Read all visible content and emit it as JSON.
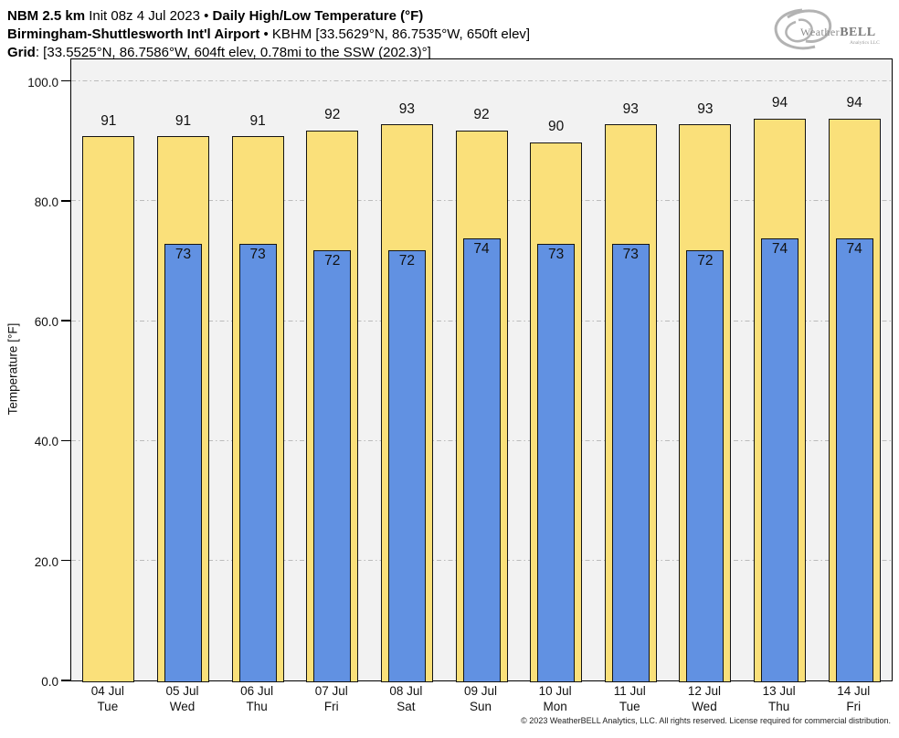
{
  "header": {
    "line1_bold1": "NBM 2.5 km",
    "line1_regular": " Init 08z 4 Jul 2023 • ",
    "line1_bold2": "Daily High/Low Temperature (°F)",
    "line2_bold": "Birmingham-Shuttlesworth Int'l Airport",
    "line2_regular": " • KBHM [33.5629°N, 86.7535°W, 650ft elev]",
    "line3_bold": "Grid",
    "line3_regular": ": [33.5525°N, 86.7586°W, 604ft elev, 0.78mi to the SSW (202.3)°]"
  },
  "logo": {
    "weather": "Weather",
    "bell": "BELL",
    "sub": "Analytics LLC"
  },
  "chart_data": {
    "type": "bar",
    "title": "Daily High/Low Temperature (°F)",
    "ylabel": "Temperature [°F]",
    "ylim": [
      0,
      103.6
    ],
    "yticks": [
      0,
      20,
      40,
      60,
      80,
      100
    ],
    "ytick_labels": [
      "0.0",
      "20.0",
      "40.0",
      "60.0",
      "80.0",
      "100.0"
    ],
    "grid": "horizontal dash-dot at each ytick",
    "legend_position": "none",
    "categories": [
      {
        "date": "04 Jul",
        "day": "Tue"
      },
      {
        "date": "05 Jul",
        "day": "Wed"
      },
      {
        "date": "06 Jul",
        "day": "Thu"
      },
      {
        "date": "07 Jul",
        "day": "Fri"
      },
      {
        "date": "08 Jul",
        "day": "Sat"
      },
      {
        "date": "09 Jul",
        "day": "Sun"
      },
      {
        "date": "10 Jul",
        "day": "Mon"
      },
      {
        "date": "11 Jul",
        "day": "Tue"
      },
      {
        "date": "12 Jul",
        "day": "Wed"
      },
      {
        "date": "13 Jul",
        "day": "Thu"
      },
      {
        "date": "14 Jul",
        "day": "Fri"
      }
    ],
    "series": [
      {
        "name": "Daily High",
        "color": "#fae07a",
        "values": [
          91,
          91,
          91,
          92,
          93,
          92,
          90,
          93,
          93,
          94,
          94
        ]
      },
      {
        "name": "Daily Low",
        "color": "#6191e2",
        "values": [
          null,
          73,
          73,
          72,
          72,
          74,
          73,
          73,
          72,
          74,
          74
        ]
      }
    ]
  },
  "colors": {
    "high_bar": "#fae07a",
    "low_bar": "#6191e2",
    "bar_border": "#141414",
    "plot_background": "#f2f2f2",
    "gridline": "#bbbbbb",
    "axis": "#000000"
  },
  "footer": {
    "copyright": "© 2023 WeatherBELL Analytics, LLC. All rights reserved. License required for commercial distribution."
  }
}
